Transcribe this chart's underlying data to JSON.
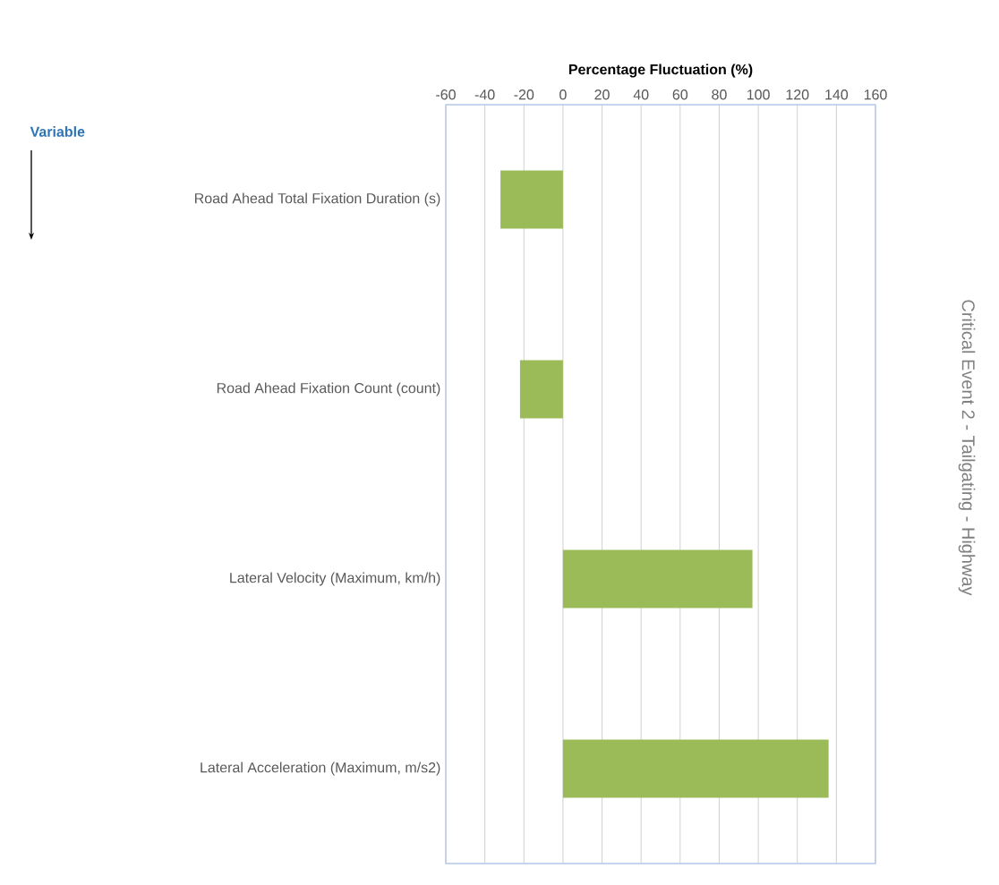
{
  "chart_data": {
    "type": "bar",
    "orientation": "horizontal",
    "xlabel": "Percentage Fluctuation (%)",
    "y2label": "Critical Event 2 - Tailgating - Highway",
    "annotations": [
      "Variable"
    ],
    "categories": [
      "Road Ahead Total Fixation Duration (s)",
      "Road Ahead Fixation Count (count)",
      "Lateral Velocity (Maximum, km/h)",
      "Lateral Acceleration (Maximum, m/s2)"
    ],
    "values": [
      -32,
      -22,
      97,
      136
    ],
    "color": "#9bbb59",
    "xlim": [
      -60,
      160
    ],
    "xticks": [
      -60,
      -40,
      -20,
      0,
      20,
      40,
      60,
      80,
      100,
      120,
      140,
      160
    ],
    "grid": "x"
  }
}
